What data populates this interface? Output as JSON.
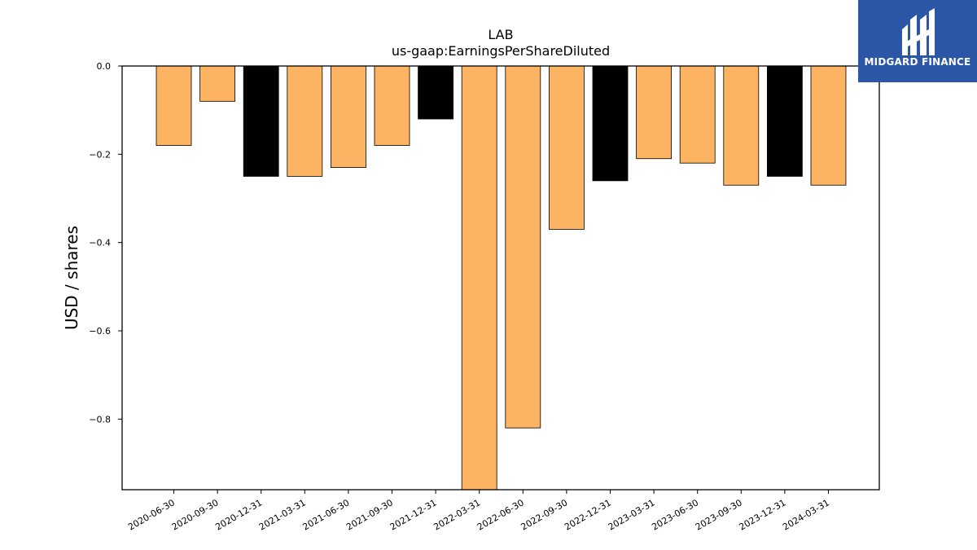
{
  "chart_data": {
    "type": "bar",
    "title": "LAB",
    "subtitle": "us-gaap:EarningsPerShareDiluted",
    "xlabel": "",
    "ylabel": "USD / shares",
    "ylim": [
      -0.96,
      0.0
    ],
    "yticks": [
      0.0,
      -0.2,
      -0.4,
      -0.6,
      -0.8
    ],
    "ytick_labels": [
      "0.0",
      "−0.2",
      "−0.4",
      "−0.6",
      "−0.8"
    ],
    "grid": false,
    "legend": "none",
    "categories": [
      "2020-06-30",
      "2020-09-30",
      "2020-12-31",
      "2021-03-31",
      "2021-06-30",
      "2021-09-30",
      "2021-12-31",
      "2022-03-31",
      "2022-06-30",
      "2022-09-30",
      "2022-12-31",
      "2023-03-31",
      "2023-06-30",
      "2023-09-30",
      "2023-12-31",
      "2024-03-31"
    ],
    "values": [
      -0.18,
      -0.08,
      -0.25,
      -0.25,
      -0.23,
      -0.18,
      -0.12,
      -0.96,
      -0.82,
      -0.37,
      -0.26,
      -0.21,
      -0.22,
      -0.27,
      -0.25,
      -0.27
    ],
    "bar_colors": [
      "#fdb462",
      "#fdb462",
      "#000000",
      "#fdb462",
      "#fdb462",
      "#fdb462",
      "#000000",
      "#fdb462",
      "#fdb462",
      "#fdb462",
      "#000000",
      "#fdb462",
      "#fdb462",
      "#fdb462",
      "#000000",
      "#fdb462"
    ]
  },
  "logo": {
    "text": "MIDGARD FINANCE",
    "icon": "midgard-logo-mark-icon",
    "background": "#2b57a6"
  }
}
